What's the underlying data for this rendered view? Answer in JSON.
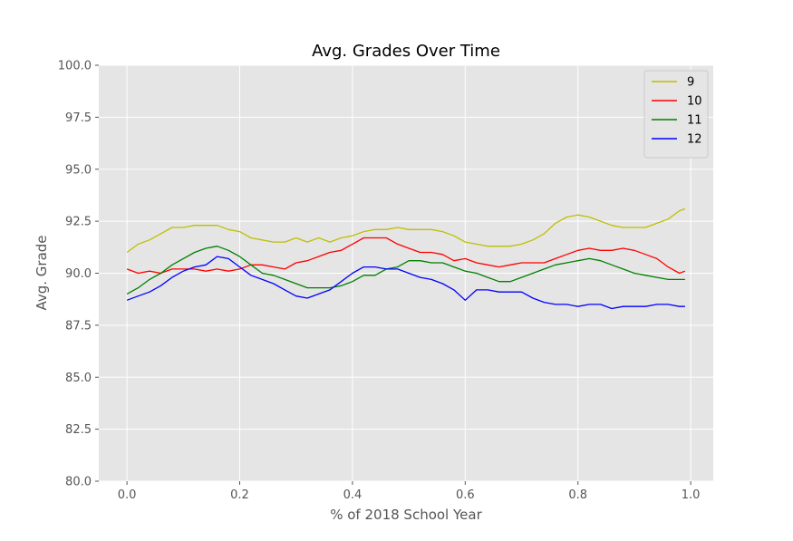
{
  "chart_data": {
    "type": "line",
    "title": "Avg. Grades Over Time",
    "xlabel": "% of 2018 School Year",
    "ylabel": "Avg. Grade",
    "xlim": [
      -0.05,
      1.04
    ],
    "ylim": [
      80.0,
      100.0
    ],
    "x_ticks": [
      "0.0",
      "0.2",
      "0.4",
      "0.6",
      "0.8",
      "1.0"
    ],
    "y_ticks": [
      "80.0",
      "82.5",
      "85.0",
      "87.5",
      "90.0",
      "92.5",
      "95.0",
      "97.5",
      "100.0"
    ],
    "grid": true,
    "legend_position": "top-right",
    "series": [
      {
        "name": "9",
        "color": "#bfbf00",
        "points": [
          [
            0.0,
            91.0
          ],
          [
            0.02,
            91.4
          ],
          [
            0.04,
            91.6
          ],
          [
            0.06,
            91.9
          ],
          [
            0.08,
            92.2
          ],
          [
            0.1,
            92.2
          ],
          [
            0.12,
            92.3
          ],
          [
            0.14,
            92.3
          ],
          [
            0.16,
            92.3
          ],
          [
            0.18,
            92.1
          ],
          [
            0.2,
            92.0
          ],
          [
            0.22,
            91.7
          ],
          [
            0.24,
            91.6
          ],
          [
            0.26,
            91.5
          ],
          [
            0.28,
            91.5
          ],
          [
            0.3,
            91.7
          ],
          [
            0.32,
            91.5
          ],
          [
            0.34,
            91.7
          ],
          [
            0.36,
            91.5
          ],
          [
            0.38,
            91.7
          ],
          [
            0.4,
            91.8
          ],
          [
            0.42,
            92.0
          ],
          [
            0.44,
            92.1
          ],
          [
            0.46,
            92.1
          ],
          [
            0.48,
            92.2
          ],
          [
            0.5,
            92.1
          ],
          [
            0.52,
            92.1
          ],
          [
            0.54,
            92.1
          ],
          [
            0.56,
            92.0
          ],
          [
            0.58,
            91.8
          ],
          [
            0.6,
            91.5
          ],
          [
            0.62,
            91.4
          ],
          [
            0.64,
            91.3
          ],
          [
            0.66,
            91.3
          ],
          [
            0.68,
            91.3
          ],
          [
            0.7,
            91.4
          ],
          [
            0.72,
            91.6
          ],
          [
            0.74,
            91.9
          ],
          [
            0.76,
            92.4
          ],
          [
            0.78,
            92.7
          ],
          [
            0.8,
            92.8
          ],
          [
            0.82,
            92.7
          ],
          [
            0.84,
            92.5
          ],
          [
            0.86,
            92.3
          ],
          [
            0.88,
            92.2
          ],
          [
            0.9,
            92.2
          ],
          [
            0.92,
            92.2
          ],
          [
            0.94,
            92.4
          ],
          [
            0.96,
            92.6
          ],
          [
            0.98,
            93.0
          ],
          [
            0.99,
            93.1
          ]
        ]
      },
      {
        "name": "10",
        "color": "#ff0000",
        "points": [
          [
            0.0,
            90.2
          ],
          [
            0.02,
            90.0
          ],
          [
            0.04,
            90.1
          ],
          [
            0.06,
            90.0
          ],
          [
            0.08,
            90.2
          ],
          [
            0.1,
            90.2
          ],
          [
            0.12,
            90.2
          ],
          [
            0.14,
            90.1
          ],
          [
            0.16,
            90.2
          ],
          [
            0.18,
            90.1
          ],
          [
            0.2,
            90.2
          ],
          [
            0.22,
            90.4
          ],
          [
            0.24,
            90.4
          ],
          [
            0.26,
            90.3
          ],
          [
            0.28,
            90.2
          ],
          [
            0.3,
            90.5
          ],
          [
            0.32,
            90.6
          ],
          [
            0.34,
            90.8
          ],
          [
            0.36,
            91.0
          ],
          [
            0.38,
            91.1
          ],
          [
            0.4,
            91.4
          ],
          [
            0.42,
            91.7
          ],
          [
            0.44,
            91.7
          ],
          [
            0.46,
            91.7
          ],
          [
            0.48,
            91.4
          ],
          [
            0.5,
            91.2
          ],
          [
            0.52,
            91.0
          ],
          [
            0.54,
            91.0
          ],
          [
            0.56,
            90.9
          ],
          [
            0.58,
            90.6
          ],
          [
            0.6,
            90.7
          ],
          [
            0.62,
            90.5
          ],
          [
            0.64,
            90.4
          ],
          [
            0.66,
            90.3
          ],
          [
            0.68,
            90.4
          ],
          [
            0.7,
            90.5
          ],
          [
            0.72,
            90.5
          ],
          [
            0.74,
            90.5
          ],
          [
            0.76,
            90.7
          ],
          [
            0.78,
            90.9
          ],
          [
            0.8,
            91.1
          ],
          [
            0.82,
            91.2
          ],
          [
            0.84,
            91.1
          ],
          [
            0.86,
            91.1
          ],
          [
            0.88,
            91.2
          ],
          [
            0.9,
            91.1
          ],
          [
            0.92,
            90.9
          ],
          [
            0.94,
            90.7
          ],
          [
            0.96,
            90.3
          ],
          [
            0.98,
            90.0
          ],
          [
            0.99,
            90.1
          ]
        ]
      },
      {
        "name": "11",
        "color": "#008000",
        "points": [
          [
            0.0,
            89.0
          ],
          [
            0.02,
            89.3
          ],
          [
            0.04,
            89.7
          ],
          [
            0.06,
            90.0
          ],
          [
            0.08,
            90.4
          ],
          [
            0.1,
            90.7
          ],
          [
            0.12,
            91.0
          ],
          [
            0.14,
            91.2
          ],
          [
            0.16,
            91.3
          ],
          [
            0.18,
            91.1
          ],
          [
            0.2,
            90.8
          ],
          [
            0.22,
            90.4
          ],
          [
            0.24,
            90.0
          ],
          [
            0.26,
            89.9
          ],
          [
            0.28,
            89.7
          ],
          [
            0.3,
            89.5
          ],
          [
            0.32,
            89.3
          ],
          [
            0.34,
            89.3
          ],
          [
            0.36,
            89.3
          ],
          [
            0.38,
            89.4
          ],
          [
            0.4,
            89.6
          ],
          [
            0.42,
            89.9
          ],
          [
            0.44,
            89.9
          ],
          [
            0.46,
            90.2
          ],
          [
            0.48,
            90.3
          ],
          [
            0.5,
            90.6
          ],
          [
            0.52,
            90.6
          ],
          [
            0.54,
            90.5
          ],
          [
            0.56,
            90.5
          ],
          [
            0.58,
            90.3
          ],
          [
            0.6,
            90.1
          ],
          [
            0.62,
            90.0
          ],
          [
            0.64,
            89.8
          ],
          [
            0.66,
            89.6
          ],
          [
            0.68,
            89.6
          ],
          [
            0.7,
            89.8
          ],
          [
            0.72,
            90.0
          ],
          [
            0.74,
            90.2
          ],
          [
            0.76,
            90.4
          ],
          [
            0.78,
            90.5
          ],
          [
            0.8,
            90.6
          ],
          [
            0.82,
            90.7
          ],
          [
            0.84,
            90.6
          ],
          [
            0.86,
            90.4
          ],
          [
            0.88,
            90.2
          ],
          [
            0.9,
            90.0
          ],
          [
            0.92,
            89.9
          ],
          [
            0.94,
            89.8
          ],
          [
            0.96,
            89.7
          ],
          [
            0.98,
            89.7
          ],
          [
            0.99,
            89.7
          ]
        ]
      },
      {
        "name": "12",
        "color": "#0000ff",
        "points": [
          [
            0.0,
            88.7
          ],
          [
            0.02,
            88.9
          ],
          [
            0.04,
            89.1
          ],
          [
            0.06,
            89.4
          ],
          [
            0.08,
            89.8
          ],
          [
            0.1,
            90.1
          ],
          [
            0.12,
            90.3
          ],
          [
            0.14,
            90.4
          ],
          [
            0.16,
            90.8
          ],
          [
            0.18,
            90.7
          ],
          [
            0.2,
            90.3
          ],
          [
            0.22,
            89.9
          ],
          [
            0.24,
            89.7
          ],
          [
            0.26,
            89.5
          ],
          [
            0.28,
            89.2
          ],
          [
            0.3,
            88.9
          ],
          [
            0.32,
            88.8
          ],
          [
            0.34,
            89.0
          ],
          [
            0.36,
            89.2
          ],
          [
            0.38,
            89.6
          ],
          [
            0.4,
            90.0
          ],
          [
            0.42,
            90.3
          ],
          [
            0.44,
            90.3
          ],
          [
            0.46,
            90.2
          ],
          [
            0.48,
            90.2
          ],
          [
            0.5,
            90.0
          ],
          [
            0.52,
            89.8
          ],
          [
            0.54,
            89.7
          ],
          [
            0.56,
            89.5
          ],
          [
            0.58,
            89.2
          ],
          [
            0.6,
            88.7
          ],
          [
            0.62,
            89.2
          ],
          [
            0.64,
            89.2
          ],
          [
            0.66,
            89.1
          ],
          [
            0.68,
            89.1
          ],
          [
            0.7,
            89.1
          ],
          [
            0.72,
            88.8
          ],
          [
            0.74,
            88.6
          ],
          [
            0.76,
            88.5
          ],
          [
            0.78,
            88.5
          ],
          [
            0.8,
            88.4
          ],
          [
            0.82,
            88.5
          ],
          [
            0.84,
            88.5
          ],
          [
            0.86,
            88.3
          ],
          [
            0.88,
            88.4
          ],
          [
            0.9,
            88.4
          ],
          [
            0.92,
            88.4
          ],
          [
            0.94,
            88.5
          ],
          [
            0.96,
            88.5
          ],
          [
            0.98,
            88.4
          ],
          [
            0.99,
            88.4
          ]
        ]
      }
    ]
  }
}
